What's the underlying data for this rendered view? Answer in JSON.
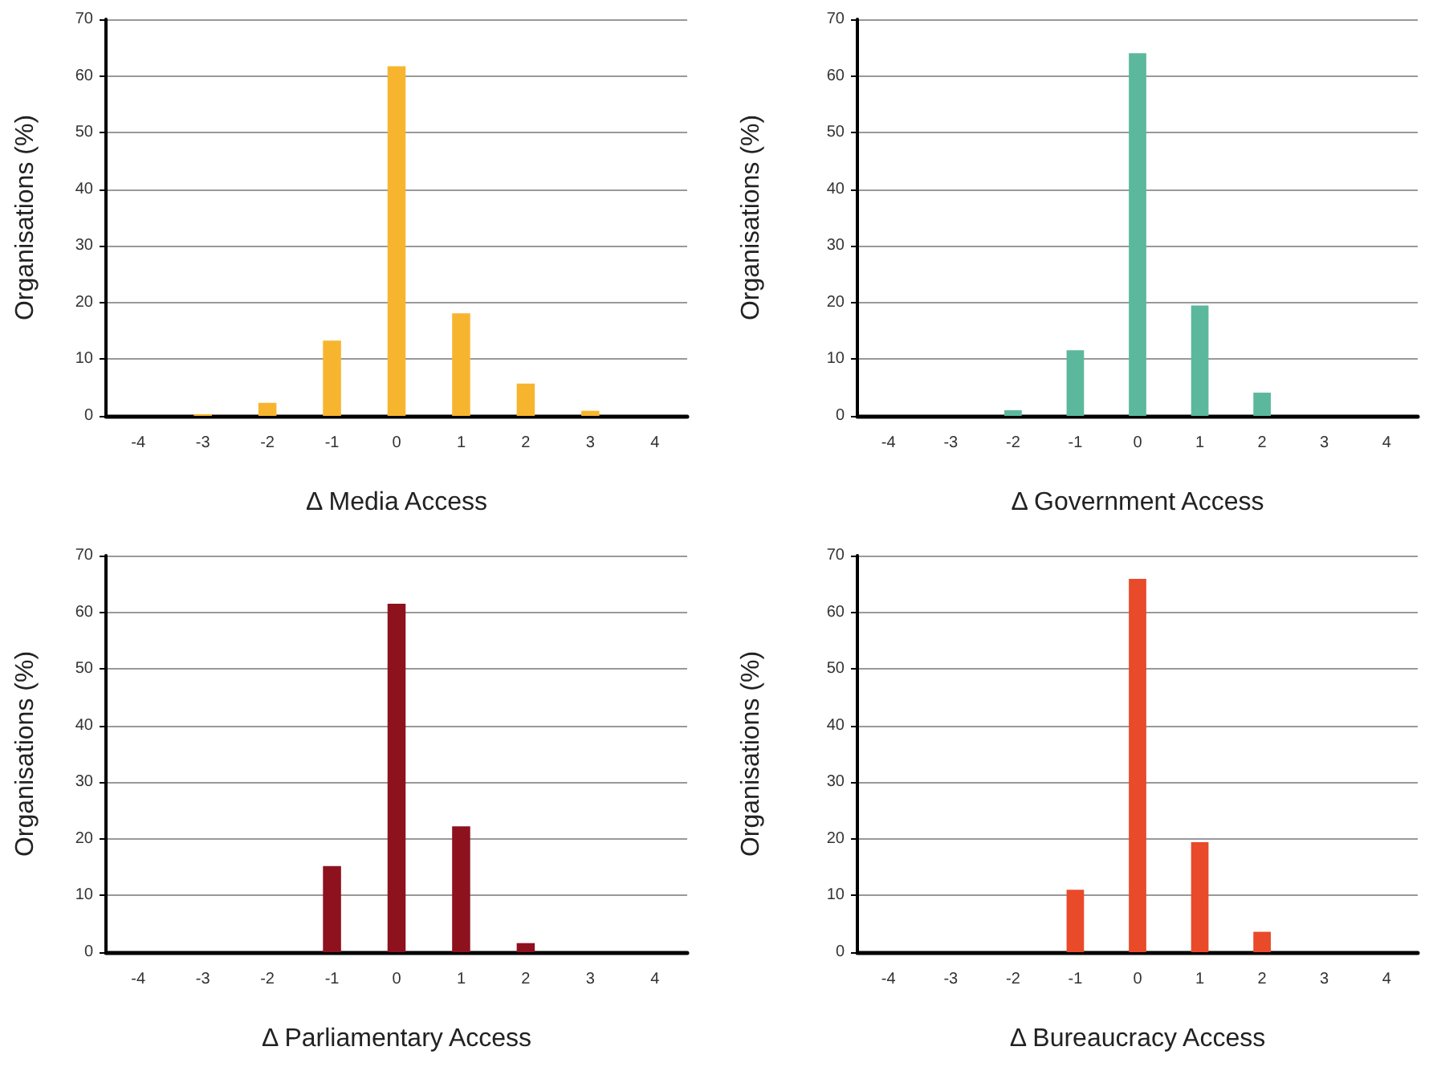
{
  "chart_data": [
    {
      "type": "bar",
      "xlabel": "Δ Media Access",
      "ylabel": "Organisations (%)",
      "categories": [
        "-4",
        "-3",
        "-2",
        "-1",
        "0",
        "1",
        "2",
        "3",
        "4"
      ],
      "values": [
        0,
        0.3,
        2.3,
        13.3,
        61.7,
        18.1,
        5.7,
        0.9,
        0
      ],
      "color": "#f7b52f",
      "ylim": [
        0,
        70
      ],
      "yticks": [
        0,
        10,
        20,
        30,
        40,
        50,
        60,
        70
      ],
      "grid": "y"
    },
    {
      "type": "bar",
      "xlabel": "Δ Government Access",
      "ylabel": "Organisations (%)",
      "categories": [
        "-4",
        "-3",
        "-2",
        "-1",
        "0",
        "1",
        "2",
        "3",
        "4"
      ],
      "values": [
        0,
        0,
        1.0,
        11.6,
        64.0,
        19.5,
        4.1,
        0,
        0
      ],
      "color": "#5cb89c",
      "ylim": [
        0,
        70
      ],
      "yticks": [
        0,
        10,
        20,
        30,
        40,
        50,
        60,
        70
      ],
      "grid": "y"
    },
    {
      "type": "bar",
      "xlabel": "Δ Parliamentary Access",
      "ylabel": "Organisations (%)",
      "categories": [
        "-4",
        "-3",
        "-2",
        "-1",
        "0",
        "1",
        "2",
        "3",
        "4"
      ],
      "values": [
        0,
        0,
        0,
        15.2,
        61.5,
        22.2,
        1.6,
        0,
        0
      ],
      "color": "#8e111e",
      "ylim": [
        0,
        70
      ],
      "yticks": [
        0,
        10,
        20,
        30,
        40,
        50,
        60,
        70
      ],
      "grid": "y"
    },
    {
      "type": "bar",
      "xlabel": "Δ Bureaucracy Access",
      "ylabel": "Organisations (%)",
      "categories": [
        "-4",
        "-3",
        "-2",
        "-1",
        "0",
        "1",
        "2",
        "3",
        "4"
      ],
      "values": [
        0,
        0,
        0,
        11.0,
        65.9,
        19.4,
        3.6,
        0,
        0
      ],
      "color": "#e84a2a",
      "ylim": [
        0,
        70
      ],
      "yticks": [
        0,
        10,
        20,
        30,
        40,
        50,
        60,
        70
      ],
      "grid": "y"
    }
  ]
}
